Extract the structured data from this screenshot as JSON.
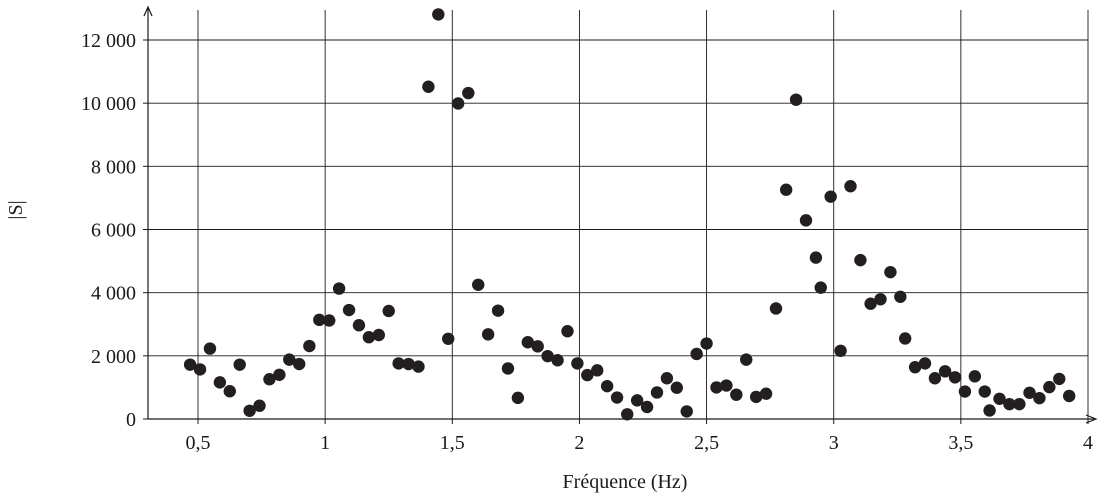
{
  "chart_data": {
    "type": "scatter",
    "title": "",
    "xlabel": "Fréquence (Hz)",
    "ylabel": "|S|",
    "xlim": [
      0.3,
      4.0
    ],
    "ylim": [
      0,
      13000
    ],
    "grid": true,
    "x_ticks": [
      0.5,
      1,
      1.5,
      2,
      2.5,
      3,
      3.5,
      4
    ],
    "x_tick_labels": [
      "0,5",
      "1",
      "1,5",
      "2",
      "2,5",
      "3",
      "3,5",
      "4"
    ],
    "y_ticks": [
      0,
      2000,
      4000,
      6000,
      8000,
      10000,
      12000
    ],
    "y_tick_labels": [
      "0",
      "2 000",
      "4 000",
      "6 000",
      "8 000",
      "10 000",
      "12 000"
    ],
    "marker_color": "#231f20",
    "series": [
      {
        "points": [
          [
            0.469,
            1720
          ],
          [
            0.508,
            1570
          ],
          [
            0.547,
            2230
          ],
          [
            0.586,
            1160
          ],
          [
            0.625,
            880
          ],
          [
            0.664,
            1720
          ],
          [
            0.703,
            260
          ],
          [
            0.742,
            420
          ],
          [
            0.781,
            1260
          ],
          [
            0.82,
            1400
          ],
          [
            0.859,
            1880
          ],
          [
            0.898,
            1740
          ],
          [
            0.938,
            2310
          ],
          [
            0.977,
            3140
          ],
          [
            1.016,
            3120
          ],
          [
            1.055,
            4130
          ],
          [
            1.094,
            3450
          ],
          [
            1.133,
            2970
          ],
          [
            1.172,
            2590
          ],
          [
            1.211,
            2660
          ],
          [
            1.25,
            3420
          ],
          [
            1.289,
            1760
          ],
          [
            1.328,
            1740
          ],
          [
            1.367,
            1660
          ],
          [
            1.406,
            10520
          ],
          [
            1.445,
            12810
          ],
          [
            1.484,
            2540
          ],
          [
            1.523,
            9990
          ],
          [
            1.563,
            10320
          ],
          [
            1.602,
            4250
          ],
          [
            1.641,
            2680
          ],
          [
            1.68,
            3430
          ],
          [
            1.719,
            1600
          ],
          [
            1.758,
            670
          ],
          [
            1.797,
            2430
          ],
          [
            1.836,
            2300
          ],
          [
            1.875,
            1990
          ],
          [
            1.914,
            1860
          ],
          [
            1.953,
            2780
          ],
          [
            1.992,
            1760
          ],
          [
            2.031,
            1390
          ],
          [
            2.07,
            1540
          ],
          [
            2.109,
            1040
          ],
          [
            2.148,
            680
          ],
          [
            2.188,
            150
          ],
          [
            2.227,
            590
          ],
          [
            2.266,
            380
          ],
          [
            2.305,
            840
          ],
          [
            2.344,
            1290
          ],
          [
            2.383,
            990
          ],
          [
            2.422,
            240
          ],
          [
            2.461,
            2060
          ],
          [
            2.5,
            2390
          ],
          [
            2.539,
            1000
          ],
          [
            2.578,
            1060
          ],
          [
            2.617,
            770
          ],
          [
            2.656,
            1880
          ],
          [
            2.695,
            700
          ],
          [
            2.734,
            800
          ],
          [
            2.773,
            3500
          ],
          [
            2.813,
            7260
          ],
          [
            2.852,
            10110
          ],
          [
            2.891,
            6290
          ],
          [
            2.93,
            5110
          ],
          [
            2.949,
            4160
          ],
          [
            2.988,
            7040
          ],
          [
            3.027,
            2160
          ],
          [
            3.066,
            7370
          ],
          [
            3.105,
            5030
          ],
          [
            3.145,
            3650
          ],
          [
            3.184,
            3790
          ],
          [
            3.223,
            4650
          ],
          [
            3.262,
            3870
          ],
          [
            3.281,
            2550
          ],
          [
            3.32,
            1640
          ],
          [
            3.359,
            1760
          ],
          [
            3.398,
            1290
          ],
          [
            3.438,
            1510
          ],
          [
            3.477,
            1320
          ],
          [
            3.516,
            870
          ],
          [
            3.555,
            1350
          ],
          [
            3.594,
            870
          ],
          [
            3.613,
            270
          ],
          [
            3.652,
            640
          ],
          [
            3.691,
            470
          ],
          [
            3.73,
            470
          ],
          [
            3.77,
            830
          ],
          [
            3.809,
            660
          ],
          [
            3.848,
            1010
          ],
          [
            3.887,
            1270
          ],
          [
            3.926,
            730
          ]
        ]
      }
    ]
  }
}
